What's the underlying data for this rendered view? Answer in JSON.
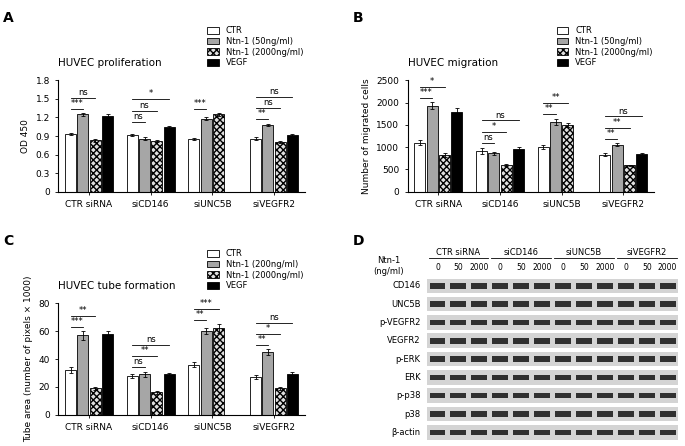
{
  "chart_data": [
    {
      "type": "bar",
      "panel_label": "A",
      "title": "HUVEC proliferation",
      "y_label": "OD 450",
      "categories": [
        "CTR siRNA",
        "siCD146",
        "siUNC5B",
        "siVEGFR2"
      ],
      "series": [
        {
          "name": "CTR",
          "color": "#ffffff",
          "values": [
            0.93,
            0.92,
            0.85,
            0.86
          ],
          "errors": [
            0.02,
            0.02,
            0.02,
            0.02
          ]
        },
        {
          "name": "Ntn-1 (50ng/ml)",
          "color": "#a6a6a6",
          "values": [
            1.25,
            0.86,
            1.18,
            1.08
          ],
          "errors": [
            0.02,
            0.02,
            0.02,
            0.02
          ]
        },
        {
          "name": "Ntn-1 (2000ng/ml)",
          "color": "#e0e0e0",
          "values": [
            0.83,
            0.82,
            1.25,
            0.8
          ],
          "errors": [
            0.02,
            0.02,
            0.02,
            0.02
          ]
        },
        {
          "name": "VEGF",
          "color": "#000000",
          "values": [
            1.23,
            1.04,
            null,
            0.91
          ],
          "errors": [
            0.02,
            0.02,
            null,
            0.02
          ]
        }
      ],
      "significance": [
        {
          "group": "CTR siRNA",
          "between": [
            "CTR",
            "Ntn-1 (50ng/ml)"
          ],
          "label": "***"
        },
        {
          "group": "CTR siRNA",
          "between": [
            "CTR",
            "Ntn-1 (2000ng/ml)"
          ],
          "label": "ns"
        },
        {
          "group": "siCD146",
          "between": [
            "CTR",
            "Ntn-1 (50ng/ml)"
          ],
          "label": "ns"
        },
        {
          "group": "siCD146",
          "between": [
            "CTR",
            "Ntn-1 (2000ng/ml)"
          ],
          "label": "ns"
        },
        {
          "group": "siCD146",
          "between": [
            "CTR",
            "VEGF"
          ],
          "label": "*"
        },
        {
          "group": "siUNC5B",
          "between": [
            "CTR",
            "Ntn-1 (50ng/ml)"
          ],
          "label": "***"
        },
        {
          "group": "siVEGFR2",
          "between": [
            "CTR",
            "Ntn-1 (50ng/ml)"
          ],
          "label": "**"
        },
        {
          "group": "siVEGFR2",
          "between": [
            "CTR",
            "Ntn-1 (2000ng/ml)"
          ],
          "label": "ns"
        },
        {
          "group": "siVEGFR2",
          "between": [
            "CTR",
            "VEGF"
          ],
          "label": "ns"
        }
      ],
      "ylim": [
        0,
        1.8
      ],
      "yticks": [
        0,
        0.3,
        0.6,
        0.9,
        1.2,
        1.5,
        1.8
      ],
      "legend": "upper right"
    },
    {
      "type": "bar",
      "panel_label": "B",
      "title": "HUVEC migration",
      "y_label": "Number of migrated cells",
      "categories": [
        "CTR siRNA",
        "siCD146",
        "siUNC5B",
        "siVEGFR2"
      ],
      "series": [
        {
          "name": "CTR",
          "color": "#ffffff",
          "values": [
            1100,
            920,
            1000,
            830
          ],
          "errors": [
            50,
            70,
            50,
            30
          ]
        },
        {
          "name": "Ntn-1 (50ng/ml)",
          "color": "#a6a6a6",
          "values": [
            1930,
            860,
            1570,
            1060
          ],
          "errors": [
            80,
            40,
            70,
            30
          ]
        },
        {
          "name": "Ntn-1 (2000ng/ml)",
          "color": "#e0e0e0",
          "values": [
            820,
            600,
            1500,
            590
          ],
          "errors": [
            50,
            30,
            40,
            20
          ]
        },
        {
          "name": "VEGF",
          "color": "#000000",
          "values": [
            1780,
            960,
            null,
            840
          ],
          "errors": [
            100,
            40,
            null,
            40
          ]
        }
      ],
      "significance": [
        {
          "group": "CTR siRNA",
          "between": [
            "CTR",
            "Ntn-1 (50ng/ml)"
          ],
          "label": "***"
        },
        {
          "group": "CTR siRNA",
          "between": [
            "CTR",
            "Ntn-1 (2000ng/ml)"
          ],
          "label": "*"
        },
        {
          "group": "siCD146",
          "between": [
            "CTR",
            "Ntn-1 (50ng/ml)"
          ],
          "label": "ns"
        },
        {
          "group": "siCD146",
          "between": [
            "CTR",
            "Ntn-1 (2000ng/ml)"
          ],
          "label": "*"
        },
        {
          "group": "siCD146",
          "between": [
            "CTR",
            "VEGF"
          ],
          "label": "ns"
        },
        {
          "group": "siUNC5B",
          "between": [
            "CTR",
            "Ntn-1 (50ng/ml)"
          ],
          "label": "**"
        },
        {
          "group": "siUNC5B",
          "between": [
            "CTR",
            "Ntn-1 (2000ng/ml)"
          ],
          "label": "**"
        },
        {
          "group": "siVEGFR2",
          "between": [
            "CTR",
            "Ntn-1 (50ng/ml)"
          ],
          "label": "**"
        },
        {
          "group": "siVEGFR2",
          "between": [
            "CTR",
            "Ntn-1 (2000ng/ml)"
          ],
          "label": "**"
        },
        {
          "group": "siVEGFR2",
          "between": [
            "CTR",
            "VEGF"
          ],
          "label": "ns"
        }
      ],
      "ylim": [
        0,
        2500
      ],
      "yticks": [
        0,
        500,
        1000,
        1500,
        2000,
        2500
      ],
      "legend": "upper right"
    },
    {
      "type": "bar",
      "panel_label": "C",
      "title": "HUVEC tube formation",
      "y_label": "Tube area (number of pixels × 1000)",
      "categories": [
        "CTR siRNA",
        "siCD146",
        "siUNC5B",
        "siVEGFR2"
      ],
      "series": [
        {
          "name": "CTR",
          "color": "#ffffff",
          "values": [
            32,
            28,
            36,
            27
          ],
          "errors": [
            2,
            1.5,
            2,
            1.5
          ]
        },
        {
          "name": "Ntn-1 (200ng/ml)",
          "color": "#a6a6a6",
          "values": [
            57,
            29,
            60,
            45
          ],
          "errors": [
            3,
            2,
            2,
            2
          ]
        },
        {
          "name": "Ntn-1 (2000ng/ml)",
          "color": "#e0e0e0",
          "values": [
            19,
            16,
            62,
            19
          ],
          "errors": [
            1,
            1,
            3,
            1
          ]
        },
        {
          "name": "VEGF",
          "color": "#000000",
          "values": [
            58,
            29,
            null,
            29
          ],
          "errors": [
            2,
            1,
            null,
            2
          ]
        }
      ],
      "significance": [
        {
          "group": "CTR siRNA",
          "between": [
            "CTR",
            "Ntn-1 (200ng/ml)"
          ],
          "label": "***"
        },
        {
          "group": "CTR siRNA",
          "between": [
            "CTR",
            "Ntn-1 (2000ng/ml)"
          ],
          "label": "**"
        },
        {
          "group": "siCD146",
          "between": [
            "CTR",
            "Ntn-1 (200ng/ml)"
          ],
          "label": "ns"
        },
        {
          "group": "siCD146",
          "between": [
            "CTR",
            "Ntn-1 (2000ng/ml)"
          ],
          "label": "**"
        },
        {
          "group": "siCD146",
          "between": [
            "CTR",
            "VEGF"
          ],
          "label": "ns"
        },
        {
          "group": "siUNC5B",
          "between": [
            "CTR",
            "Ntn-1 (200ng/ml)"
          ],
          "label": "**"
        },
        {
          "group": "siUNC5B",
          "between": [
            "CTR",
            "Ntn-1 (2000ng/ml)"
          ],
          "label": "***"
        },
        {
          "group": "siVEGFR2",
          "between": [
            "CTR",
            "Ntn-1 (200ng/ml)"
          ],
          "label": "**"
        },
        {
          "group": "siVEGFR2",
          "between": [
            "CTR",
            "Ntn-1 (2000ng/ml)"
          ],
          "label": "*"
        },
        {
          "group": "siVEGFR2",
          "between": [
            "CTR",
            "VEGF"
          ],
          "label": "ns"
        }
      ],
      "ylim": [
        0,
        80
      ],
      "yticks": [
        0,
        20,
        40,
        60,
        80
      ],
      "legend": "upper right"
    }
  ],
  "blot": {
    "panel_label": "D",
    "treatment_label": "Ntn-1\n(ng/ml)",
    "groups": [
      "CTR siRNA",
      "siCD146",
      "siUNC5B",
      "siVEGFR2"
    ],
    "doses": [
      0,
      50,
      2000
    ],
    "rows": [
      "CD146",
      "UNC5B",
      "p-VEGFR2",
      "VEGFR2",
      "p-ERK",
      "ERK",
      "p-p38",
      "p38",
      "β-actin"
    ]
  }
}
